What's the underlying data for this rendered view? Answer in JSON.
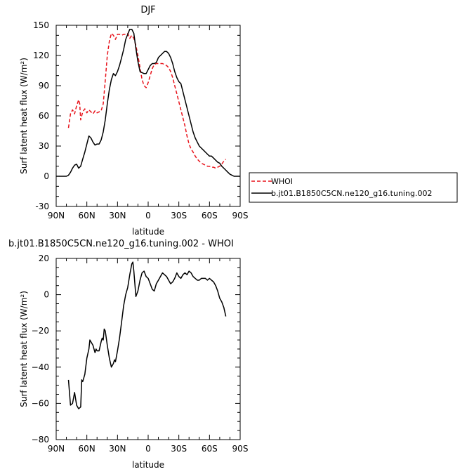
{
  "chart_data": [
    {
      "type": "line",
      "title": "DJF",
      "xlabel": "latitude",
      "ylabel": "Surf latent heat flux (W/m²)",
      "xlim": [
        90,
        -90
      ],
      "ylim": [
        -30,
        150
      ],
      "x_ticks": [
        90,
        60,
        30,
        0,
        -30,
        -60,
        -90
      ],
      "x_tick_labels": [
        "90N",
        "60N",
        "30N",
        "0",
        "30S",
        "60S",
        "90S"
      ],
      "y_ticks": [
        -30,
        0,
        30,
        60,
        90,
        120,
        150
      ],
      "y_tick_labels": [
        "-30",
        "0",
        "30",
        "60",
        "90",
        "120",
        "150"
      ],
      "legend_position": "right",
      "series": [
        {
          "name": "WHOI",
          "color": "#e8141c",
          "dash": "dashed",
          "x": [
            78,
            76,
            74,
            72,
            70,
            68,
            67,
            66,
            64,
            62,
            60,
            58,
            56,
            54,
            52,
            50,
            48,
            46,
            44,
            42,
            40,
            38,
            36,
            34,
            32,
            30,
            28,
            26,
            24,
            22,
            20,
            18,
            16,
            14,
            12,
            10,
            8,
            6,
            4,
            2,
            0,
            -2,
            -4,
            -6,
            -8,
            -10,
            -12,
            -14,
            -16,
            -18,
            -20,
            -22,
            -24,
            -26,
            -28,
            -30,
            -32,
            -34,
            -36,
            -38,
            -40,
            -42,
            -44,
            -46,
            -48,
            -50,
            -52,
            -54,
            -56,
            -58,
            -60,
            -62,
            -64,
            -66,
            -68,
            -70,
            -72,
            -74,
            -76
          ],
          "y": [
            48,
            62,
            66,
            62,
            70,
            76,
            72,
            56,
            64,
            67,
            63,
            66,
            64,
            62,
            65,
            63,
            64,
            65,
            72,
            95,
            120,
            134,
            142,
            140,
            136,
            141,
            141,
            140,
            141,
            141,
            142,
            137,
            140,
            137,
            130,
            120,
            108,
            96,
            90,
            88,
            93,
            100,
            107,
            111,
            112,
            112,
            112,
            112,
            111,
            110,
            108,
            104,
            98,
            90,
            82,
            74,
            66,
            58,
            50,
            40,
            32,
            27,
            24,
            20,
            17,
            15,
            13,
            12,
            11,
            10,
            10,
            9,
            9,
            8,
            9,
            10,
            12,
            15,
            17
          ]
        },
        {
          "name": "b.jt01.B1850C5CN.ne120_g16.tuning.002",
          "color": "#000000",
          "dash": "solid",
          "x": [
            90,
            88,
            86,
            84,
            82,
            80,
            78,
            76,
            74,
            72,
            70,
            68,
            66,
            64,
            62,
            60,
            58,
            56,
            54,
            52,
            50,
            48,
            46,
            44,
            42,
            40,
            38,
            36,
            34,
            32,
            30,
            28,
            26,
            24,
            22,
            20,
            18,
            16,
            14,
            12,
            10,
            8,
            6,
            4,
            2,
            0,
            -2,
            -4,
            -6,
            -8,
            -10,
            -12,
            -14,
            -16,
            -18,
            -20,
            -22,
            -24,
            -26,
            -28,
            -30,
            -32,
            -34,
            -36,
            -38,
            -40,
            -42,
            -44,
            -46,
            -48,
            -50,
            -52,
            -54,
            -56,
            -58,
            -60,
            -62,
            -64,
            -66,
            -68,
            -70,
            -72,
            -74,
            -76,
            -78,
            -80,
            -82,
            -84,
            -86,
            -88,
            -90
          ],
          "y": [
            0,
            0,
            0,
            0,
            0,
            0,
            1,
            4,
            8,
            11,
            12,
            8,
            10,
            17,
            24,
            32,
            40,
            38,
            34,
            31,
            32,
            32,
            36,
            44,
            56,
            72,
            86,
            96,
            102,
            100,
            104,
            110,
            118,
            126,
            136,
            141,
            146,
            146,
            142,
            127,
            114,
            104,
            103,
            102,
            102,
            106,
            110,
            112,
            112,
            113,
            118,
            120,
            122,
            124,
            124,
            122,
            118,
            112,
            104,
            98,
            94,
            92,
            84,
            76,
            68,
            60,
            52,
            44,
            38,
            34,
            30,
            28,
            26,
            24,
            22,
            20,
            20,
            18,
            16,
            14,
            13,
            10,
            8,
            6,
            4,
            2,
            1,
            0,
            0,
            0,
            0
          ]
        }
      ]
    },
    {
      "type": "line",
      "title": "b.jt01.B1850C5CN.ne120_g16.tuning.002 - WHOI",
      "xlabel": "latitude",
      "ylabel": "Surf latent heat flux (W/m²)",
      "xlim": [
        90,
        -90
      ],
      "ylim": [
        -80,
        20
      ],
      "x_ticks": [
        90,
        60,
        30,
        0,
        -30,
        -60,
        -90
      ],
      "x_tick_labels": [
        "90N",
        "60N",
        "30N",
        "0",
        "30S",
        "60S",
        "90S"
      ],
      "y_ticks": [
        -80,
        -60,
        -40,
        -20,
        0,
        20
      ],
      "y_tick_labels": [
        "−80",
        "−60",
        "−40",
        "−20",
        "0",
        "20"
      ],
      "series": [
        {
          "color": "#000000",
          "dash": "solid",
          "x": [
            78,
            76,
            74,
            72,
            70,
            68,
            66,
            65,
            64,
            62,
            60,
            58,
            57,
            56,
            54,
            52,
            51,
            50,
            48,
            46,
            45,
            44,
            43,
            42,
            40,
            38,
            36,
            34,
            33,
            32,
            30,
            28,
            26,
            24,
            22,
            20,
            18,
            16,
            15,
            14,
            12,
            10,
            8,
            6,
            4,
            2,
            0,
            -2,
            -4,
            -6,
            -8,
            -10,
            -12,
            -14,
            -16,
            -18,
            -20,
            -22,
            -24,
            -26,
            -28,
            -30,
            -32,
            -34,
            -36,
            -38,
            -40,
            -42,
            -44,
            -46,
            -48,
            -50,
            -52,
            -54,
            -56,
            -58,
            -60,
            -62,
            -64,
            -66,
            -68,
            -70,
            -72,
            -74,
            -76
          ],
          "y": [
            -47,
            -61,
            -60,
            -54,
            -61,
            -63,
            -62,
            -47,
            -48,
            -44,
            -35,
            -30,
            -25,
            -26,
            -28,
            -32,
            -30,
            -31,
            -31,
            -26,
            -24,
            -25,
            -19,
            -20,
            -28,
            -35,
            -40,
            -38,
            -36,
            -37,
            -31,
            -24,
            -15,
            -6,
            0,
            4,
            11,
            17,
            18,
            13,
            -1,
            2,
            8,
            12,
            13,
            10,
            9,
            6,
            3,
            2,
            6,
            8,
            10,
            12,
            11,
            10,
            8,
            6,
            7,
            9,
            12,
            10,
            9,
            11,
            12,
            11,
            13,
            12,
            10,
            9,
            8,
            8,
            9,
            9,
            9,
            8,
            9,
            8,
            7,
            5,
            2,
            -2,
            -4,
            -7,
            -12
          ]
        }
      ]
    }
  ]
}
